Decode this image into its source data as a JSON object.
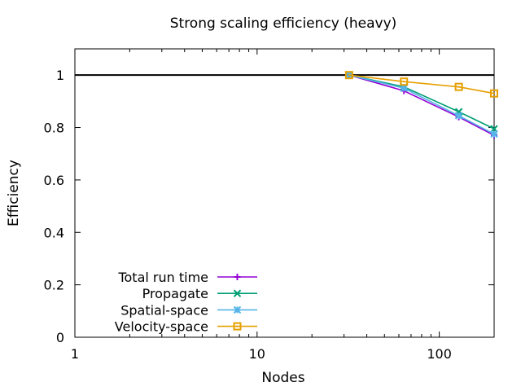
{
  "chart_data": {
    "type": "line",
    "title": "Strong scaling efficiency (heavy)",
    "xlabel": "Nodes",
    "ylabel": "Efficiency",
    "xscale": "log",
    "xlim": [
      1,
      200
    ],
    "ylim": [
      0,
      1.1
    ],
    "xticks": [
      {
        "value": 1,
        "label": "1"
      },
      {
        "value": 10,
        "label": "10"
      },
      {
        "value": 100,
        "label": "100"
      }
    ],
    "yticks": [
      {
        "value": 0,
        "label": "0"
      },
      {
        "value": 0.2,
        "label": "0.2"
      },
      {
        "value": 0.4,
        "label": "0.4"
      },
      {
        "value": 0.6,
        "label": "0.6"
      },
      {
        "value": 0.8,
        "label": "0.8"
      },
      {
        "value": 1,
        "label": "1"
      }
    ],
    "reference_line": {
      "y": 1,
      "color": "#000000"
    },
    "grid": false,
    "legend_position": "bottom-left",
    "x": [
      32,
      64,
      128,
      200
    ],
    "series": [
      {
        "name": "Total run time",
        "color": "#9400d3",
        "marker": "plus",
        "values": [
          1.0,
          0.94,
          0.84,
          0.77
        ]
      },
      {
        "name": "Propagate",
        "color": "#009e73",
        "marker": "cross",
        "values": [
          1.0,
          0.955,
          0.86,
          0.795
        ]
      },
      {
        "name": "Spatial-space",
        "color": "#56b4e9",
        "marker": "asterisk",
        "values": [
          1.0,
          0.95,
          0.845,
          0.775
        ]
      },
      {
        "name": "Velocity-space",
        "color": "#e69f00",
        "marker": "square",
        "values": [
          1.0,
          0.975,
          0.955,
          0.93
        ]
      }
    ]
  }
}
